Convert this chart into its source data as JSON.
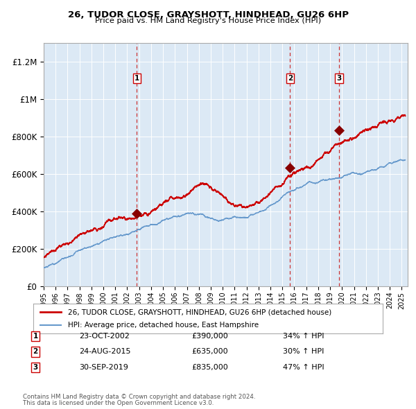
{
  "title": "26, TUDOR CLOSE, GRAYSHOTT, HINDHEAD, GU26 6HP",
  "subtitle": "Price paid vs. HM Land Registry's House Price Index (HPI)",
  "bg_color": "#dce9f5",
  "outer_bg_color": "#ffffff",
  "grid_color": "#ffffff",
  "red_line_color": "#cc0000",
  "blue_line_color": "#6699cc",
  "sale_marker_color": "#880000",
  "dashed_line_color": "#cc3333",
  "sales": [
    {
      "num": 1,
      "date_x": 2002.81,
      "price": 390000,
      "label": "23-OCT-2002",
      "pct": "34% ↑ HPI"
    },
    {
      "num": 2,
      "date_x": 2015.65,
      "price": 635000,
      "label": "24-AUG-2015",
      "pct": "30% ↑ HPI"
    },
    {
      "num": 3,
      "date_x": 2019.75,
      "price": 835000,
      "label": "30-SEP-2019",
      "pct": "47% ↑ HPI"
    }
  ],
  "ylim": [
    0,
    1300000
  ],
  "xlim": [
    1995.0,
    2025.5
  ],
  "yticks": [
    0,
    200000,
    400000,
    600000,
    800000,
    1000000,
    1200000
  ],
  "ytick_labels": [
    "£0",
    "£200K",
    "£400K",
    "£600K",
    "£800K",
    "£1M",
    "£1.2M"
  ],
  "xtick_years": [
    1995,
    1996,
    1997,
    1998,
    1999,
    2000,
    2001,
    2002,
    2003,
    2004,
    2005,
    2006,
    2007,
    2008,
    2009,
    2010,
    2011,
    2012,
    2013,
    2014,
    2015,
    2016,
    2017,
    2018,
    2019,
    2020,
    2021,
    2022,
    2023,
    2024,
    2025
  ],
  "footer1": "Contains HM Land Registry data © Crown copyright and database right 2024.",
  "footer2": "This data is licensed under the Open Government Licence v3.0.",
  "legend_label_red": "26, TUDOR CLOSE, GRAYSHOTT, HINDHEAD, GU26 6HP (detached house)",
  "legend_label_blue": "HPI: Average price, detached house, East Hampshire"
}
